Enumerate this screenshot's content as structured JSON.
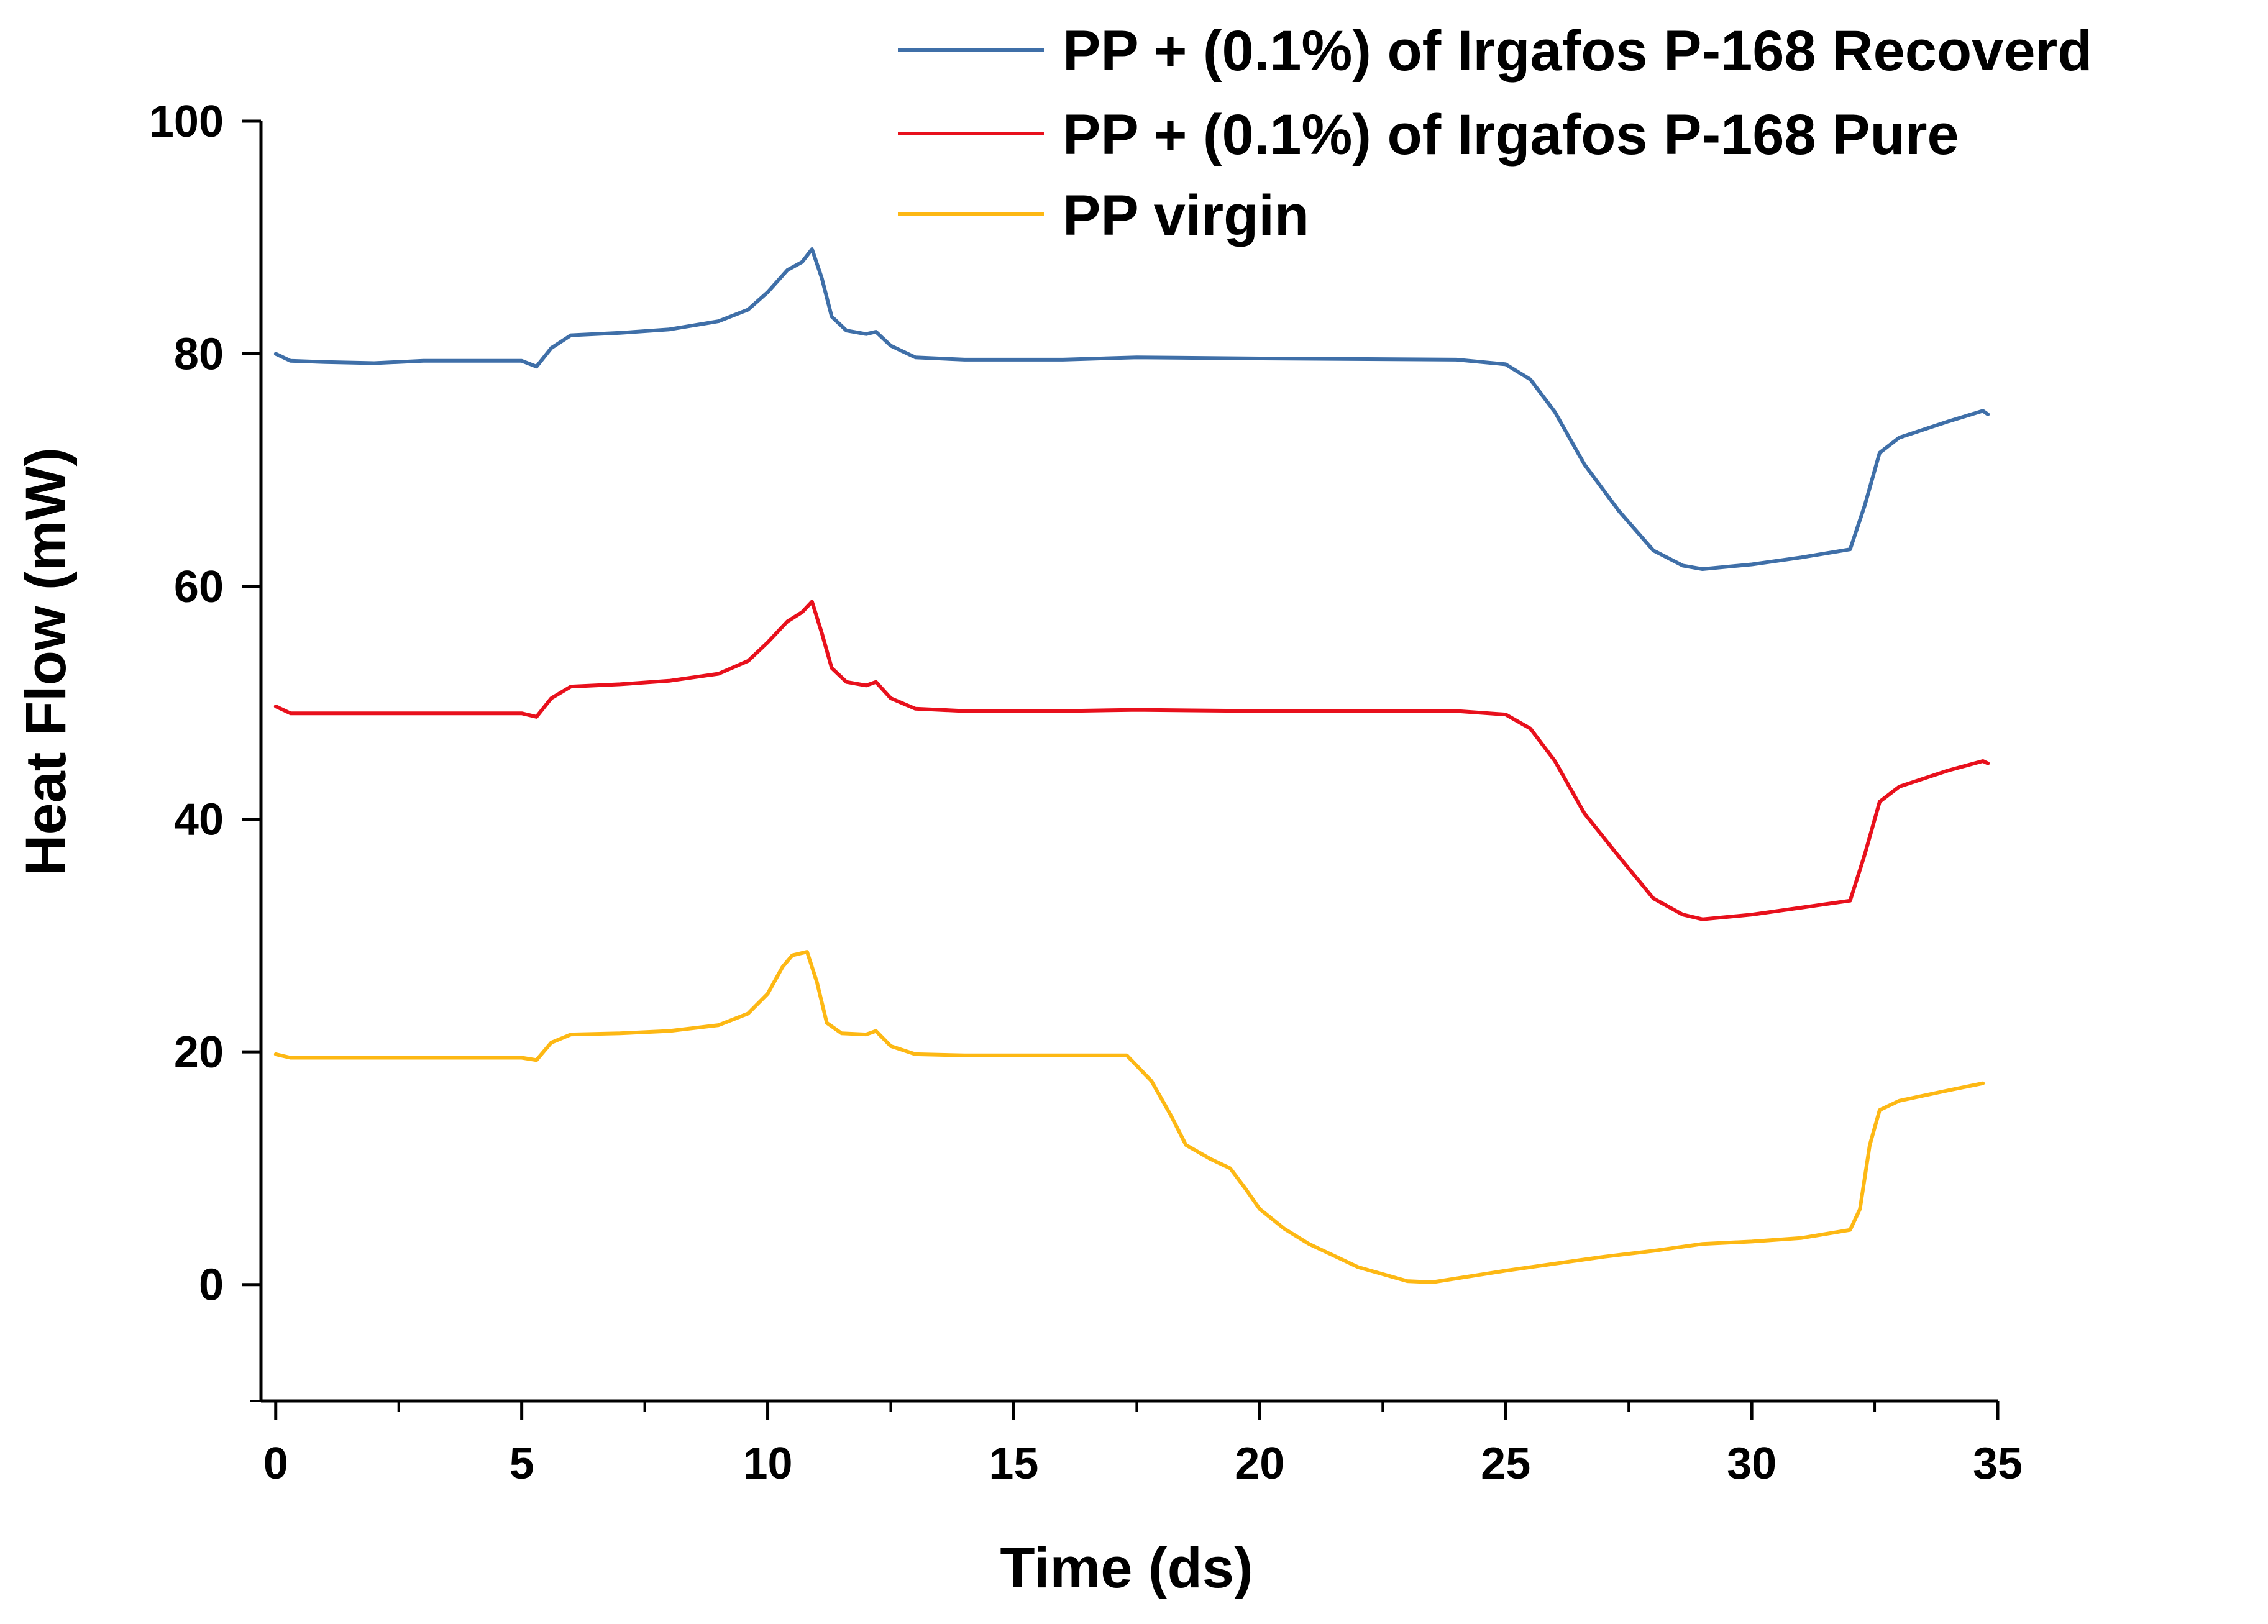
{
  "chart_data": {
    "type": "line",
    "title": "",
    "xlabel": "Time (ds)",
    "ylabel": "Heat Flow (mW)",
    "xlim": [
      -0.3,
      35.0
    ],
    "ylim": [
      -10,
      100
    ],
    "xticks": [
      0,
      5,
      10,
      15,
      20,
      25,
      30,
      35
    ],
    "yticks": [
      0,
      20,
      40,
      60,
      80,
      100
    ],
    "x_minor_step": 2.5,
    "y_minor_step": 10,
    "grid": false,
    "legend_position": "top-right",
    "series": [
      {
        "name": "PP + (0.1%) of Irgafos P-168 Recoverd",
        "color": "#3f6fa8",
        "points": [
          [
            0,
            80
          ],
          [
            0.3,
            79.4
          ],
          [
            1,
            79.3
          ],
          [
            2,
            79.2
          ],
          [
            3,
            79.4
          ],
          [
            4,
            79.4
          ],
          [
            5,
            79.4
          ],
          [
            5.3,
            78.9
          ],
          [
            5.6,
            80.5
          ],
          [
            6,
            81.6
          ],
          [
            7,
            81.8
          ],
          [
            8,
            82.1
          ],
          [
            9,
            82.8
          ],
          [
            9.6,
            83.8
          ],
          [
            10,
            85.3
          ],
          [
            10.4,
            87.2
          ],
          [
            10.7,
            87.9
          ],
          [
            10.9,
            89
          ],
          [
            11.1,
            86.5
          ],
          [
            11.3,
            83.2
          ],
          [
            11.6,
            82
          ],
          [
            12,
            81.7
          ],
          [
            12.2,
            81.9
          ],
          [
            12.5,
            80.7
          ],
          [
            13,
            79.7
          ],
          [
            14,
            79.5
          ],
          [
            16,
            79.5
          ],
          [
            17.5,
            79.7
          ],
          [
            20,
            79.6
          ],
          [
            24,
            79.5
          ],
          [
            25,
            79.1
          ],
          [
            25.5,
            77.8
          ],
          [
            26,
            75
          ],
          [
            26.6,
            70.5
          ],
          [
            27.3,
            66.5
          ],
          [
            28,
            63.1
          ],
          [
            28.6,
            61.8
          ],
          [
            29,
            61.5
          ],
          [
            30,
            61.9
          ],
          [
            31,
            62.5
          ],
          [
            32,
            63.2
          ],
          [
            32.3,
            67
          ],
          [
            32.6,
            71.5
          ],
          [
            33,
            72.8
          ],
          [
            34,
            74.2
          ],
          [
            34.7,
            75.1
          ],
          [
            34.8,
            74.8
          ]
        ]
      },
      {
        "name": "PP + (0.1%) of Irgafos P-168 Pure",
        "color": "#e8101c",
        "points": [
          [
            0,
            49.7
          ],
          [
            0.3,
            49.1
          ],
          [
            1,
            49.1
          ],
          [
            2,
            49.1
          ],
          [
            3,
            49.1
          ],
          [
            4,
            49.1
          ],
          [
            5,
            49.1
          ],
          [
            5.3,
            48.8
          ],
          [
            5.6,
            50.4
          ],
          [
            6,
            51.4
          ],
          [
            7,
            51.6
          ],
          [
            8,
            51.9
          ],
          [
            9,
            52.5
          ],
          [
            9.6,
            53.6
          ],
          [
            10,
            55.2
          ],
          [
            10.4,
            57
          ],
          [
            10.7,
            57.8
          ],
          [
            10.9,
            58.7
          ],
          [
            11.1,
            56
          ],
          [
            11.3,
            53
          ],
          [
            11.6,
            51.8
          ],
          [
            12,
            51.5
          ],
          [
            12.2,
            51.8
          ],
          [
            12.5,
            50.4
          ],
          [
            13,
            49.5
          ],
          [
            14,
            49.3
          ],
          [
            16,
            49.3
          ],
          [
            17.5,
            49.4
          ],
          [
            20,
            49.3
          ],
          [
            24,
            49.3
          ],
          [
            25,
            49
          ],
          [
            25.5,
            47.8
          ],
          [
            26,
            45
          ],
          [
            26.6,
            40.5
          ],
          [
            27.3,
            36.8
          ],
          [
            28,
            33.2
          ],
          [
            28.6,
            31.8
          ],
          [
            29,
            31.4
          ],
          [
            30,
            31.8
          ],
          [
            31,
            32.4
          ],
          [
            32,
            33
          ],
          [
            32.3,
            37
          ],
          [
            32.6,
            41.5
          ],
          [
            33,
            42.8
          ],
          [
            34,
            44.2
          ],
          [
            34.7,
            45
          ],
          [
            34.8,
            44.8
          ]
        ]
      },
      {
        "name": "PP virgin",
        "color": "#fdb814",
        "points": [
          [
            0,
            19.8
          ],
          [
            0.3,
            19.5
          ],
          [
            1,
            19.5
          ],
          [
            2,
            19.5
          ],
          [
            3,
            19.5
          ],
          [
            4,
            19.5
          ],
          [
            5,
            19.5
          ],
          [
            5.3,
            19.3
          ],
          [
            5.6,
            20.8
          ],
          [
            6,
            21.5
          ],
          [
            7,
            21.6
          ],
          [
            8,
            21.8
          ],
          [
            9,
            22.3
          ],
          [
            9.6,
            23.3
          ],
          [
            10,
            25
          ],
          [
            10.3,
            27.3
          ],
          [
            10.5,
            28.3
          ],
          [
            10.8,
            28.6
          ],
          [
            11,
            26
          ],
          [
            11.2,
            22.5
          ],
          [
            11.5,
            21.6
          ],
          [
            12,
            21.5
          ],
          [
            12.2,
            21.8
          ],
          [
            12.5,
            20.5
          ],
          [
            13,
            19.8
          ],
          [
            14,
            19.7
          ],
          [
            16,
            19.7
          ],
          [
            17.3,
            19.7
          ],
          [
            17.8,
            17.5
          ],
          [
            18.2,
            14.5
          ],
          [
            18.5,
            12
          ],
          [
            19,
            10.8
          ],
          [
            19.4,
            10
          ],
          [
            19.7,
            8.3
          ],
          [
            20,
            6.5
          ],
          [
            20.5,
            4.8
          ],
          [
            21,
            3.5
          ],
          [
            22,
            1.5
          ],
          [
            23,
            0.3
          ],
          [
            23.5,
            0.2
          ],
          [
            25,
            1.2
          ],
          [
            26,
            1.8
          ],
          [
            27,
            2.4
          ],
          [
            28,
            2.9
          ],
          [
            29,
            3.5
          ],
          [
            30,
            3.7
          ],
          [
            31,
            4
          ],
          [
            32,
            4.7
          ],
          [
            32.2,
            6.5
          ],
          [
            32.4,
            12
          ],
          [
            32.6,
            15
          ],
          [
            33,
            15.8
          ],
          [
            34,
            16.7
          ],
          [
            34.7,
            17.3
          ]
        ]
      }
    ]
  }
}
